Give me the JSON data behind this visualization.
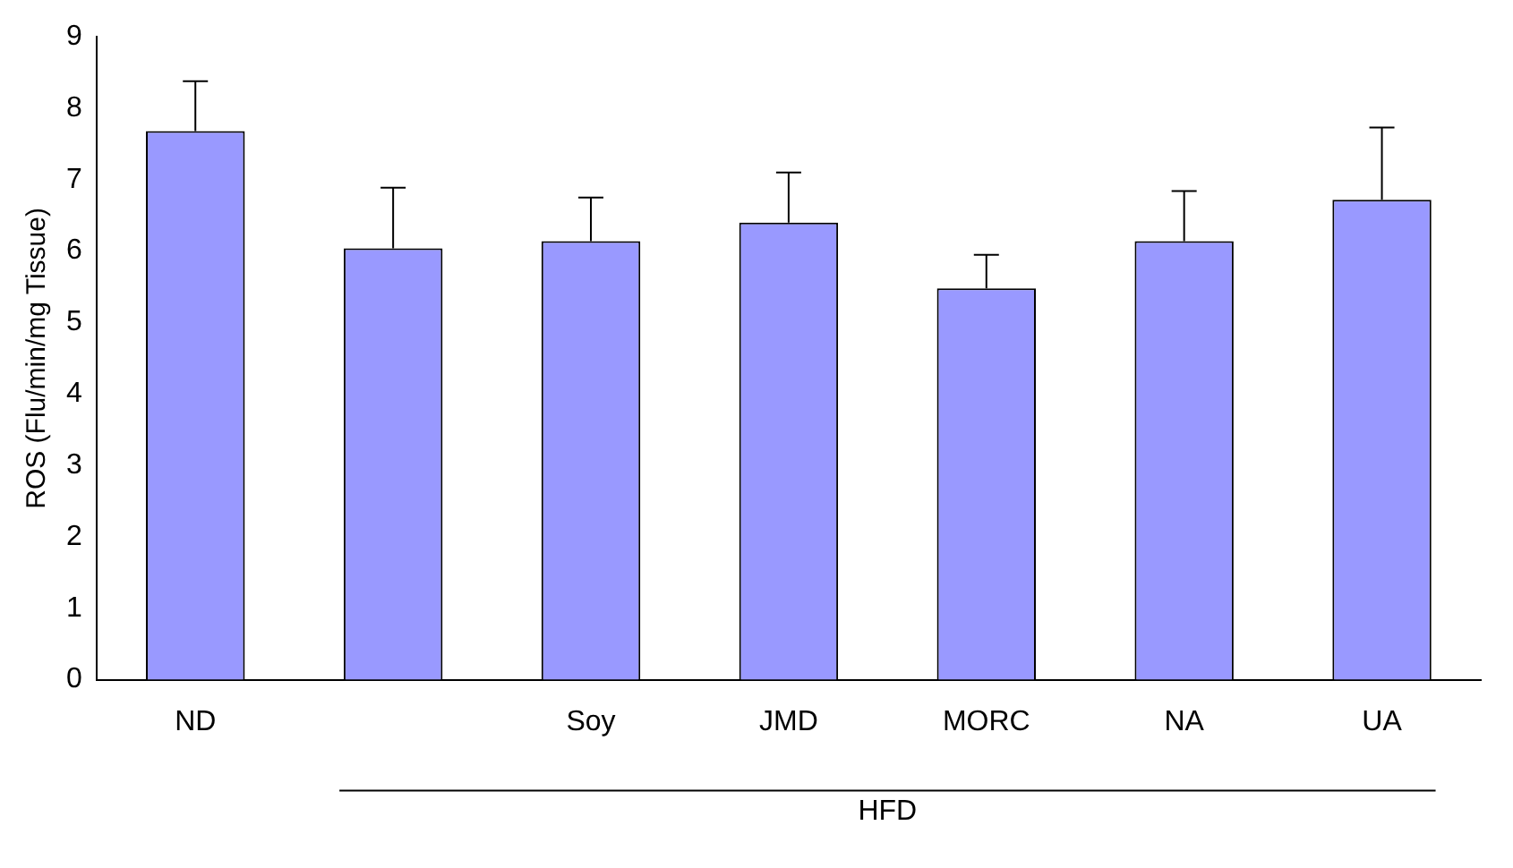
{
  "chart_data": {
    "type": "bar",
    "ylabel": "ROS (Flu/min/mg Tissue)",
    "categories": [
      "ND",
      null,
      "Soy",
      "JMD",
      "MORC",
      "NA",
      "UA"
    ],
    "values": [
      7.68,
      6.04,
      6.14,
      6.4,
      5.48,
      6.14,
      6.72
    ],
    "errors": [
      [
        7.68,
        8.38
      ],
      [
        6.04,
        6.89
      ],
      [
        6.14,
        6.75
      ],
      [
        6.4,
        7.1
      ],
      [
        5.48,
        5.95
      ],
      [
        6.14,
        6.84
      ],
      [
        6.72,
        7.73
      ]
    ],
    "color": "#9999ff",
    "ylim": [
      0,
      9
    ],
    "yticks": [
      0,
      1,
      2,
      3,
      4,
      5,
      6,
      7,
      8,
      9
    ],
    "grid": false,
    "legend": false,
    "annotations": [
      "HFD"
    ]
  }
}
